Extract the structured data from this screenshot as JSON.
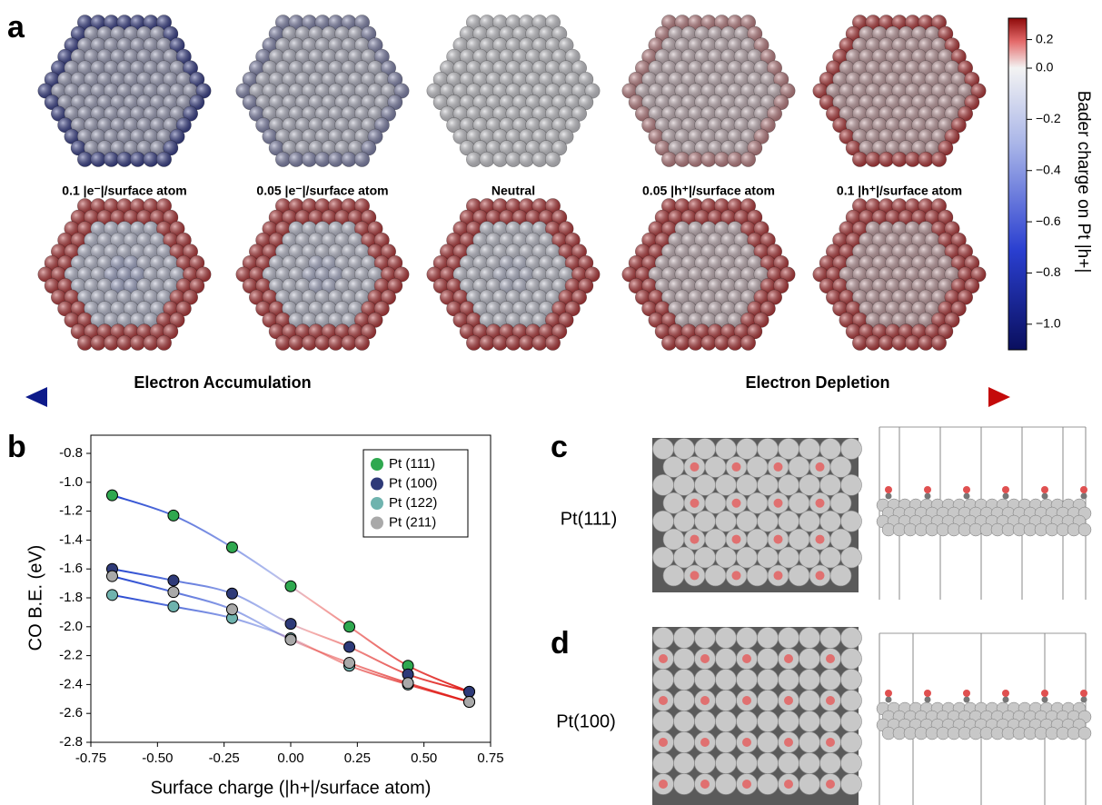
{
  "panel_labels": [
    "a",
    "b",
    "c",
    "d"
  ],
  "panel_a": {
    "conditions": [
      "0.1 |e⁻|/surface atom",
      "0.05 |e⁻|/surface atom",
      "Neutral",
      "0.05 |h⁺|/surface atom",
      "0.1 |h⁺|/surface atom"
    ],
    "colorbar": {
      "label": "Bader charge on Pt |h+|",
      "ylim": [
        -1.1,
        0.35
      ],
      "center": 0,
      "yticks": [
        {
          "value": 0.2,
          "label": "0.2"
        },
        {
          "value": 0,
          "label": "0.0"
        },
        {
          "value": -0.2,
          "label": "−0.2"
        },
        {
          "value": -0.4,
          "label": "−0.4"
        },
        {
          "value": -0.6,
          "label": "−0.6"
        },
        {
          "value": -0.8,
          "label": "−0.8"
        },
        {
          "value": -1.0,
          "label": "−1.0"
        }
      ]
    },
    "arrow": {
      "left": "Electron Accumulation",
      "right": "Electron Depletion"
    }
  },
  "chart_data": {
    "type": "line",
    "x_label": "Surface charge (|h+|/surface atom)",
    "y_label": "CO B.E. (eV)",
    "x": [
      -0.67,
      -0.44,
      -0.22,
      0,
      0.22,
      0.44,
      0.67
    ],
    "series": [
      {
        "name": "Pt (111)",
        "color": "#2fa84f",
        "values": [
          -1.09,
          -1.23,
          -1.45,
          -1.72,
          -2.0,
          -2.27,
          -2.45
        ]
      },
      {
        "name": "Pt (100)",
        "color": "#2e3a78",
        "values": [
          -1.6,
          -1.68,
          -1.77,
          -1.98,
          -2.14,
          -2.33,
          -2.45
        ]
      },
      {
        "name": "Pt (122)",
        "color": "#6fb3ae",
        "values": [
          -1.78,
          -1.86,
          -1.94,
          -2.08,
          -2.27,
          -2.4,
          -2.52
        ]
      },
      {
        "name": "Pt (211)",
        "color": "#a9a9a9",
        "values": [
          -1.65,
          -1.76,
          -1.88,
          -2.09,
          -2.25,
          -2.39,
          -2.52
        ]
      }
    ],
    "line_gradient": [
      "#2446d0",
      "#e0201c"
    ],
    "xlim": [
      -0.75,
      0.75
    ],
    "xticks": [
      -0.75,
      {
        "value": -0.5,
        "label": "-0.50"
      },
      -0.25,
      {
        "value": 0,
        "label": "0.00"
      },
      0.25,
      {
        "value": 0.5,
        "label": "0.50"
      },
      0.75
    ],
    "ylim": [
      -2.8,
      -0.8
    ],
    "yticks": [
      -0.8,
      {
        "value": -1.0,
        "label": "-1.0"
      },
      -1.2,
      -1.4,
      -1.6,
      -1.8,
      {
        "value": -2.0,
        "label": "-2.0"
      },
      -2.2,
      -2.4,
      -2.6,
      -2.8
    ],
    "legend": "upper right"
  },
  "panel_c": {
    "label": "Pt(111)"
  },
  "panel_d": {
    "label": "Pt(100)"
  }
}
